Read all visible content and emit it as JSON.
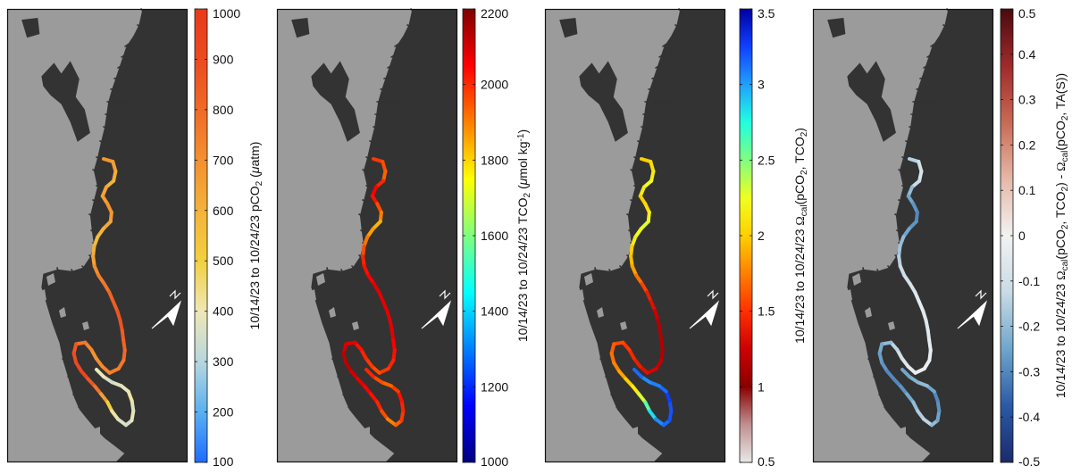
{
  "panels": [
    {
      "id": "pco2",
      "colorbar": {
        "colormap": "pco2",
        "ticks": [
          "1000",
          "900",
          "800",
          "700",
          "600",
          "500",
          "400",
          "300",
          "200",
          "100"
        ],
        "label_parts": [
          {
            "t": "10/14/23 to 10/24/23 pCO"
          },
          {
            "t": "2",
            "sub": true
          },
          {
            "t": " ("
          },
          {
            "t": "μ",
            "italic": true
          },
          {
            "t": "atm)"
          }
        ]
      },
      "track_colormap": "pco2",
      "track_values": [
        0.65,
        0.62,
        0.58,
        0.55,
        0.6,
        0.62,
        0.66,
        0.64,
        0.6,
        0.55,
        0.52,
        0.56,
        0.6,
        0.68,
        0.72,
        0.75,
        0.8,
        0.82,
        0.85,
        0.86,
        0.82,
        0.8,
        0.78,
        0.74,
        0.72,
        0.7,
        0.68,
        0.66,
        0.7,
        0.74,
        0.84,
        0.88,
        0.9,
        0.92,
        0.85,
        0.75,
        0.62,
        0.45,
        0.35,
        0.3,
        0.28,
        0.32,
        0.3,
        0.35,
        0.32,
        0.3,
        0.28,
        0.33
      ]
    },
    {
      "id": "tco2",
      "colorbar": {
        "colormap": "jet",
        "ticks": [
          "2200",
          "2000",
          "1800",
          "1600",
          "1400",
          "1200",
          "1000"
        ],
        "label_parts": [
          {
            "t": "10/14/23 to 10/24/23 TCO"
          },
          {
            "t": "2",
            "sub": true
          },
          {
            "t": " ("
          },
          {
            "t": "μ",
            "italic": true
          },
          {
            "t": "mol kg"
          },
          {
            "t": "-1",
            "sup": true
          },
          {
            "t": ")"
          }
        ]
      },
      "track_colormap": "jet",
      "track_values": [
        0.82,
        0.8,
        0.78,
        0.84,
        0.88,
        0.86,
        0.8,
        0.75,
        0.7,
        0.72,
        0.76,
        0.8,
        0.84,
        0.86,
        0.88,
        0.9,
        0.9,
        0.9,
        0.9,
        0.9,
        0.9,
        0.88,
        0.86,
        0.84,
        0.82,
        0.8,
        0.82,
        0.84,
        0.86,
        0.9,
        0.92,
        0.94,
        0.94,
        0.92,
        0.9,
        0.88,
        0.86,
        0.84,
        0.8,
        0.75,
        0.78,
        0.82,
        0.84,
        0.86,
        0.82,
        0.78,
        0.8,
        0.84
      ]
    },
    {
      "id": "omega",
      "colorbar": {
        "colormap": "omega",
        "ticks": [
          "3.5",
          "3",
          "2.5",
          "2",
          "1.5",
          "1",
          "0.5"
        ],
        "label_parts": [
          {
            "t": "10/14/23 to 10/24/23 "
          },
          {
            "t": "Ω",
            "serif": true
          },
          {
            "t": "cal",
            "sub": true
          },
          {
            "t": "(pCO"
          },
          {
            "t": "2",
            "sub": true
          },
          {
            "t": ", TCO"
          },
          {
            "t": "2",
            "sub": true
          },
          {
            "t": ")"
          }
        ]
      },
      "track_colormap": "omega",
      "track_values": [
        0.5,
        0.52,
        0.55,
        0.58,
        0.55,
        0.5,
        0.52,
        0.56,
        0.6,
        0.58,
        0.55,
        0.5,
        0.48,
        0.45,
        0.4,
        0.35,
        0.3,
        0.28,
        0.25,
        0.22,
        0.22,
        0.22,
        0.22,
        0.24,
        0.26,
        0.28,
        0.3,
        0.32,
        0.34,
        0.36,
        0.38,
        0.4,
        0.42,
        0.45,
        0.5,
        0.55,
        0.6,
        0.7,
        0.78,
        0.85,
        0.88,
        0.9,
        0.9,
        0.92,
        0.88,
        0.86,
        0.85,
        0.88
      ]
    },
    {
      "id": "diff",
      "colorbar": {
        "colormap": "diverge",
        "ticks": [
          "0.5",
          "0.4",
          "0.3",
          "0.2",
          "0.1",
          "0",
          "-0.1",
          "-0.2",
          "-0.3",
          "-0.4",
          "-0.5"
        ],
        "label_parts": [
          {
            "t": "10/14/23 to 10/24/23 "
          },
          {
            "t": "Ω",
            "serif": true
          },
          {
            "t": "cal",
            "sub": true
          },
          {
            "t": "(pCO"
          },
          {
            "t": "2",
            "sub": true
          },
          {
            "t": ", TCO"
          },
          {
            "t": "2",
            "sub": true
          },
          {
            "t": ") - "
          },
          {
            "t": "Ω",
            "serif": true
          },
          {
            "t": "cal",
            "sub": true
          },
          {
            "t": "(pCO"
          },
          {
            "t": "2",
            "sub": true
          },
          {
            "t": ", TA(S))"
          }
        ]
      },
      "track_colormap": "diverge",
      "track_values": [
        0.35,
        0.4,
        0.42,
        0.38,
        0.3,
        0.25,
        0.22,
        0.2,
        0.22,
        0.25,
        0.3,
        0.32,
        0.35,
        0.38,
        0.4,
        0.42,
        0.44,
        0.46,
        0.45,
        0.44,
        0.45,
        0.46,
        0.47,
        0.48,
        0.48,
        0.46,
        0.44,
        0.4,
        0.36,
        0.3,
        0.26,
        0.24,
        0.22,
        0.2,
        0.2,
        0.22,
        0.26,
        0.3,
        0.34,
        0.36,
        0.3,
        0.25,
        0.22,
        0.2,
        0.25,
        0.3,
        0.28,
        0.25
      ]
    }
  ],
  "colors": {
    "land": "#9b9b9b",
    "water": "#333333",
    "frame": "#111111",
    "north_arrow": "#ffffff"
  },
  "colormaps": {
    "pco2": [
      "#1f6cff",
      "#5ab0f0",
      "#b7d7de",
      "#efe7b6",
      "#f2d040",
      "#f4b23a",
      "#f49030",
      "#f06a28",
      "#ec4a20",
      "#e83a1a"
    ],
    "jet": [
      "#00007f",
      "#0000ff",
      "#007fff",
      "#00ffff",
      "#7fff7f",
      "#ffff00",
      "#ff7f00",
      "#ff0000",
      "#7f0000"
    ],
    "omega": [
      "#e8e8e8",
      "#c09090",
      "#8a0000",
      "#cc0000",
      "#ff3000",
      "#ff8000",
      "#ffd000",
      "#f0ff20",
      "#80ff80",
      "#20ffe0",
      "#20a0ff",
      "#1040ff",
      "#0000a0"
    ],
    "diverge": [
      "#1b2a6b",
      "#2a5aa6",
      "#6fa6cc",
      "#c9dbe6",
      "#f2f2f2",
      "#e6b8a8",
      "#c86a55",
      "#a02a2a",
      "#4a0a10"
    ]
  }
}
